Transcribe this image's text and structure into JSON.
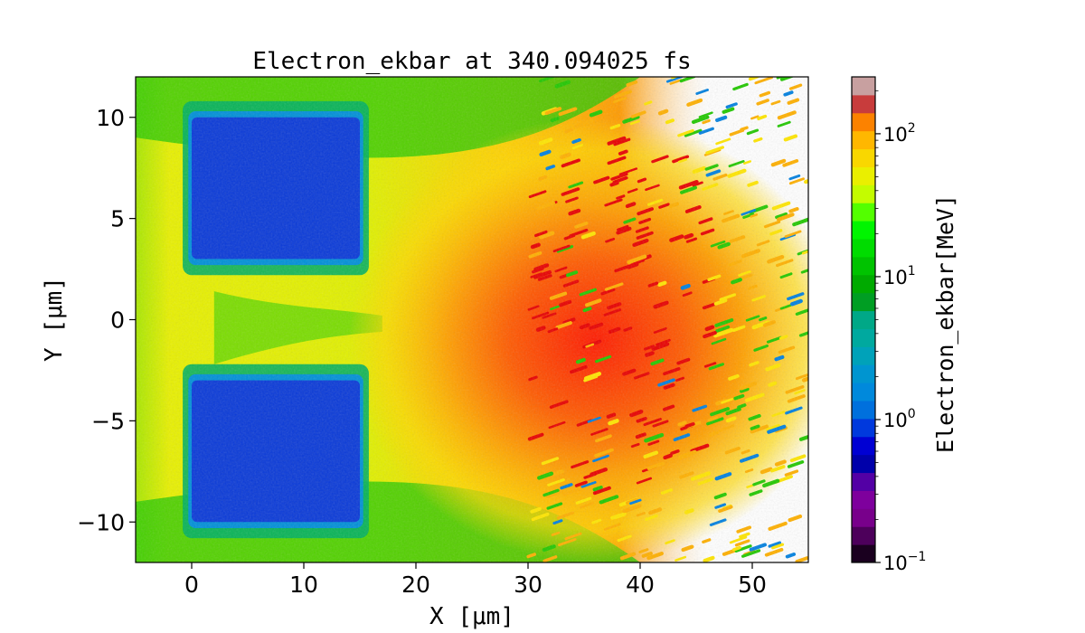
{
  "chart_data": {
    "type": "heatmap",
    "title": "Electron_ekbar at 340.094025 fs",
    "xlabel": "X [μm]",
    "ylabel": "Y [μm]",
    "xlim": [
      -5,
      55
    ],
    "ylim": [
      -12,
      12
    ],
    "x_ticks": [
      {
        "value": 0,
        "label": "0"
      },
      {
        "value": 10,
        "label": "10"
      },
      {
        "value": 20,
        "label": "20"
      },
      {
        "value": 30,
        "label": "30"
      },
      {
        "value": 40,
        "label": "40"
      },
      {
        "value": 50,
        "label": "50"
      }
    ],
    "y_ticks": [
      {
        "value": -10,
        "label": "−10"
      },
      {
        "value": -5,
        "label": "−5"
      },
      {
        "value": 0,
        "label": "0"
      },
      {
        "value": 5,
        "label": "5"
      },
      {
        "value": 10,
        "label": "10"
      }
    ],
    "colorbar": {
      "label": "Electron_ekbar[MeV]",
      "scale": "log",
      "range": [
        0.1,
        250
      ],
      "ticks": [
        {
          "value": 0.1,
          "base": "10",
          "exp": "−1"
        },
        {
          "value": 1,
          "base": "10",
          "exp": "0"
        },
        {
          "value": 10,
          "base": "10",
          "exp": "1"
        },
        {
          "value": 100,
          "base": "10",
          "exp": "2"
        }
      ],
      "levels_per_decade": 8,
      "colormap": "nipy_spectral"
    },
    "field_regions": [
      {
        "name": "upper-target-block",
        "x": [
          0,
          15
        ],
        "y": [
          3,
          10
        ],
        "value": 0.8
      },
      {
        "name": "lower-target-block",
        "x": [
          0,
          15
        ],
        "y": [
          -10,
          -3
        ],
        "value": 0.8
      },
      {
        "name": "hot-electron-plume",
        "peak_x": 36,
        "peak_y": -1,
        "peak_value": 150
      }
    ],
    "grid": false
  }
}
